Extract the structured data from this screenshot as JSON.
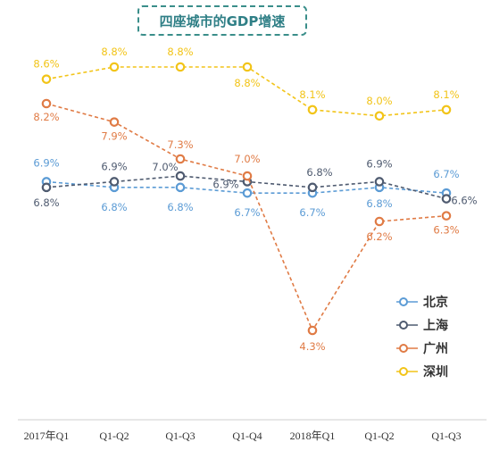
{
  "chart_data": {
    "type": "line",
    "title": "四座城市的GDP增速",
    "categories": [
      "2017年Q1",
      "Q1-Q2",
      "Q1-Q3",
      "Q1-Q4",
      "2018年Q1",
      "Q1-Q2",
      "Q1-Q3"
    ],
    "unit": "%",
    "series": [
      {
        "name": "北京",
        "color": "#5b9bd5",
        "values": [
          6.9,
          6.8,
          6.8,
          6.7,
          6.7,
          6.8,
          6.7
        ],
        "labels": [
          "6.9%",
          "6.8%",
          "6.8%",
          "6.7%",
          "6.7%",
          "6.8%",
          "6.7%"
        ]
      },
      {
        "name": "上海",
        "color": "#4f5b70",
        "values": [
          6.8,
          6.9,
          7.0,
          6.9,
          6.8,
          6.9,
          6.6
        ],
        "labels": [
          "6.8%",
          "6.9%",
          "7.0%",
          "6.9%",
          "6.8%",
          "6.9%",
          "6.6%"
        ]
      },
      {
        "name": "广州",
        "color": "#e07b45",
        "values": [
          8.2,
          7.9,
          7.3,
          7.0,
          4.3,
          6.2,
          6.3
        ],
        "labels": [
          "8.2%",
          "7.9%",
          "7.3%",
          "7.0%",
          "4.3%",
          "6.2%",
          "6.3%"
        ]
      },
      {
        "name": "深圳",
        "color": "#f2c418",
        "values": [
          8.6,
          8.8,
          8.8,
          8.8,
          8.1,
          8.0,
          8.1
        ],
        "labels": [
          "8.6%",
          "8.8%",
          "8.8%",
          "8.8%",
          "8.1%",
          "8.0%",
          "8.1%"
        ]
      }
    ],
    "legend": "right",
    "grid": false
  }
}
